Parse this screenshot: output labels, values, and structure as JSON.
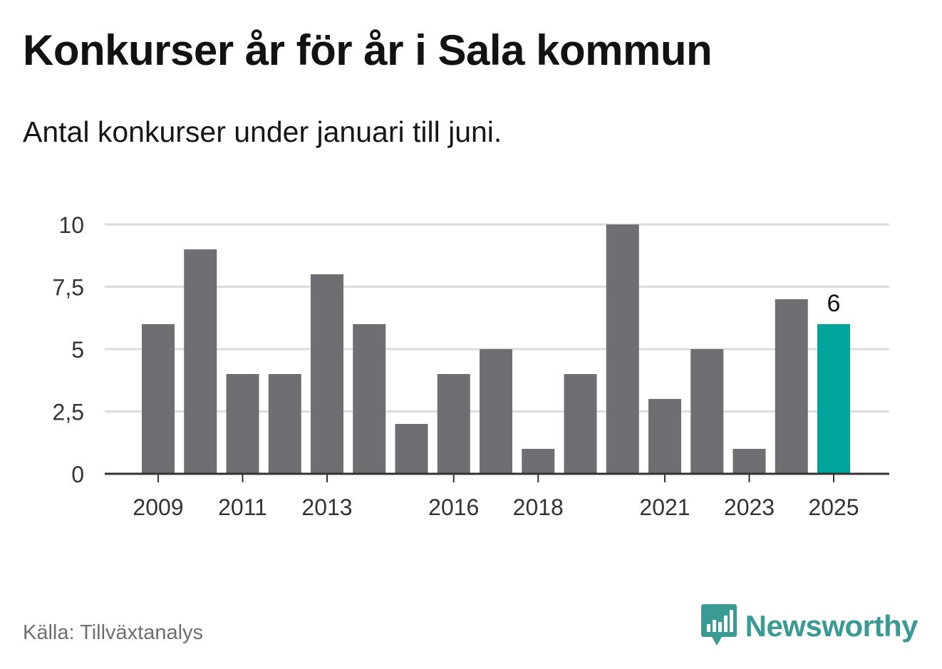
{
  "title": "Konkurser år för år i Sala kommun",
  "subtitle": "Antal konkurser under januari till juni.",
  "source": "Källa: Tillväxtanalys",
  "brand": {
    "name": "Newsworthy",
    "icon": "newsworthy-logo-icon"
  },
  "colors": {
    "bar": "#6f6e73",
    "highlight": "#00a49a",
    "grid": "#dddddd",
    "axis": "#333333",
    "brand": "#3a9a94"
  },
  "chart_data": {
    "type": "bar",
    "title": "Konkurser år för år i Sala kommun",
    "subtitle": "Antal konkurser under januari till juni.",
    "categories": [
      "2009",
      "2010",
      "2011",
      "2012",
      "2013",
      "2014",
      "2015",
      "2016",
      "2017",
      "2018",
      "2019",
      "2020",
      "2021",
      "2022",
      "2023",
      "2024",
      "2025"
    ],
    "values": [
      6,
      9,
      4,
      4,
      8,
      6,
      2,
      4,
      5,
      1,
      4,
      10,
      3,
      5,
      1,
      7,
      6
    ],
    "x_tick_labels": [
      "2009",
      "2011",
      "2013",
      "2016",
      "2018",
      "2021",
      "2023",
      "2025"
    ],
    "y_ticks": [
      0,
      2.5,
      5,
      7.5,
      10
    ],
    "y_tick_labels": [
      "0",
      "2,5",
      "5",
      "7,5",
      "10"
    ],
    "ylim": [
      0,
      10
    ],
    "highlight_category": "2025",
    "data_labels": [
      {
        "category": "2025",
        "text": "6"
      }
    ],
    "xlabel": "",
    "ylabel": "",
    "grid": true,
    "legend": false
  }
}
